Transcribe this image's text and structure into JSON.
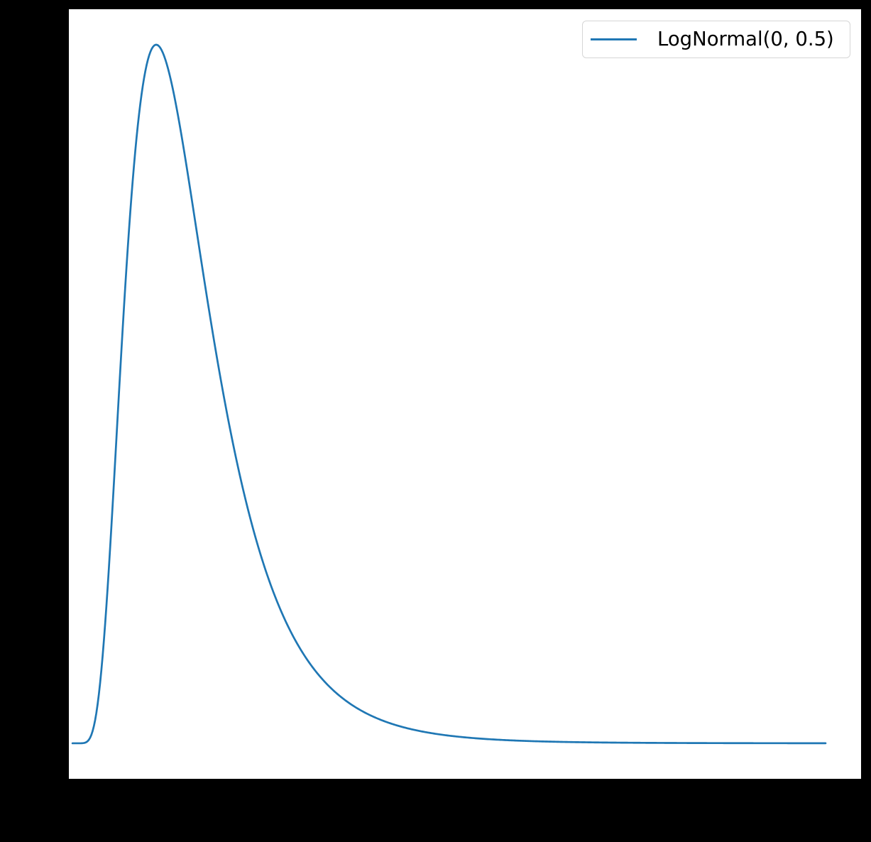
{
  "figure": {
    "background": "#000000",
    "axes_background": "#ffffff"
  },
  "legend": {
    "label": "LogNormal(0, 0.5)",
    "line_color": "#1f77b4",
    "border_color": "#d6d6d6",
    "position": "upper-right"
  },
  "chart_data": {
    "type": "line",
    "title": "",
    "xlabel": "",
    "ylabel": "",
    "xlim": [
      -0.033,
      7.33
    ],
    "ylim": [
      -0.046,
      0.95
    ],
    "grid": false,
    "legend_entries": [
      "LogNormal(0, 0.5)"
    ],
    "legend_position": "upper right",
    "series": [
      {
        "name": "LogNormal(0, 0.5)",
        "color": "#1f77b4",
        "linewidth": 2.7,
        "distribution": "lognormal",
        "params": {
          "mu": 0,
          "sigma": 0.5
        },
        "x_start": 0.001,
        "x_end": 7,
        "peak": {
          "x": 0.7788,
          "y": 0.9042
        },
        "points": [
          [
            0.05,
            0.0
          ],
          [
            0.1,
            0.0002
          ],
          [
            0.15,
            0.004
          ],
          [
            0.2,
            0.0224
          ],
          [
            0.25,
            0.0684
          ],
          [
            0.3,
            0.1466
          ],
          [
            0.35,
            0.2515
          ],
          [
            0.4,
            0.3723
          ],
          [
            0.45,
            0.4954
          ],
          [
            0.5,
            0.6106
          ],
          [
            0.55,
            0.7099
          ],
          [
            0.6,
            0.7891
          ],
          [
            0.65,
            0.8468
          ],
          [
            0.7,
            0.8838
          ],
          [
            0.75,
            0.9016
          ],
          [
            0.7788,
            0.9042
          ],
          [
            0.8,
            0.9028
          ],
          [
            0.85,
            0.8904
          ],
          [
            0.9,
            0.867
          ],
          [
            0.95,
            0.8355
          ],
          [
            1.0,
            0.7979
          ],
          [
            1.1,
            0.7123
          ],
          [
            1.2,
            0.6222
          ],
          [
            1.3,
            0.5349
          ],
          [
            1.4,
            0.4546
          ],
          [
            1.5,
            0.3829
          ],
          [
            1.6,
            0.3206
          ],
          [
            1.7,
            0.2672
          ],
          [
            1.8,
            0.2221
          ],
          [
            1.9,
            0.1842
          ],
          [
            2.0,
            0.1526
          ],
          [
            2.2,
            0.1046
          ],
          [
            2.4,
            0.0718
          ],
          [
            2.6,
            0.0494
          ],
          [
            2.8,
            0.0342
          ],
          [
            3.0,
            0.0238
          ],
          [
            3.25,
            0.0153
          ],
          [
            3.5,
            0.0099
          ],
          [
            3.75,
            0.0065
          ],
          [
            4.0,
            0.0043
          ],
          [
            4.5,
            0.0019
          ],
          [
            5.0,
            0.0009
          ],
          [
            5.5,
            0.0004
          ],
          [
            6.0,
            0.0002
          ],
          [
            6.5,
            0.0001
          ],
          [
            7.0,
            0.0001
          ]
        ]
      }
    ]
  }
}
